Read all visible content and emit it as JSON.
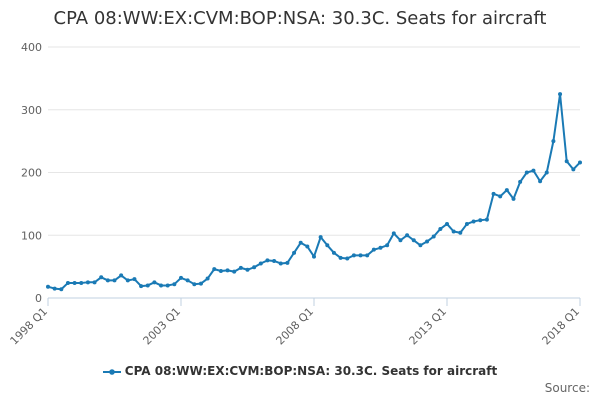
{
  "chart_data": {
    "type": "line",
    "title": "CPA 08:WW:EX:CVM:BOP:NSA: 30.3C. Seats for aircraft",
    "x_tick_labels": [
      "1998 Q1",
      "2003 Q1",
      "2008 Q1",
      "2013 Q1",
      "2018 Q1"
    ],
    "x_tick_indices": [
      0,
      20,
      40,
      60,
      80
    ],
    "y_ticks": [
      0,
      100,
      200,
      300,
      400
    ],
    "ylim": [
      0,
      400
    ],
    "grid": true,
    "legend_position": "bottom",
    "source_label": "Source:",
    "series": [
      {
        "name": "CPA 08:WW:EX:CVM:BOP:NSA: 30.3C. Seats for aircraft",
        "color": "#1a7ab5",
        "values": [
          18,
          15,
          14,
          24,
          24,
          24,
          25,
          25,
          33,
          28,
          28,
          36,
          28,
          30,
          19,
          20,
          25,
          20,
          20,
          22,
          32,
          28,
          22,
          23,
          31,
          46,
          43,
          44,
          42,
          48,
          45,
          49,
          55,
          60,
          59,
          55,
          56,
          72,
          88,
          82,
          66,
          97,
          84,
          72,
          64,
          63,
          68,
          68,
          68,
          77,
          80,
          84,
          103,
          92,
          100,
          92,
          84,
          90,
          98,
          110,
          118,
          106,
          104,
          118,
          122,
          124,
          125,
          166,
          162,
          172,
          158,
          185,
          200,
          203,
          186,
          200,
          250,
          325,
          218,
          205,
          216
        ]
      }
    ]
  }
}
